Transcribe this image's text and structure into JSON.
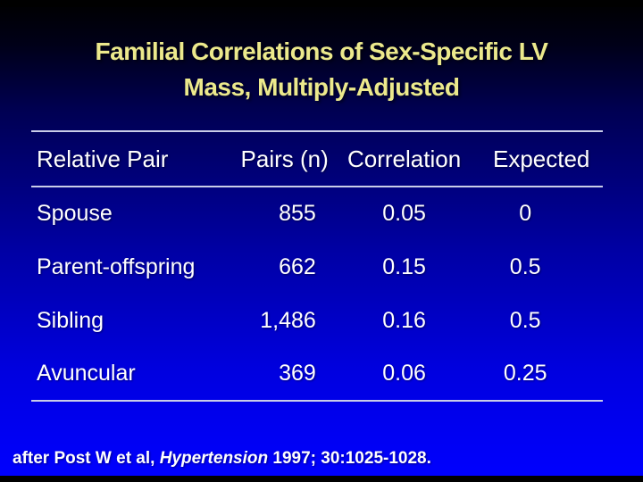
{
  "slide": {
    "title_line1": "Familial Correlations of Sex-Specific LV",
    "title_line2": "Mass, Multiply-Adjusted",
    "colors": {
      "title_text": "#ece98c",
      "table_text": "#ffffff",
      "rule_lines": "#c9cde8",
      "background_top": "#000003",
      "background_bottom": "#0000fe",
      "letterbox": "#000000"
    }
  },
  "table": {
    "columns": [
      "Relative Pair",
      "Pairs (n)",
      "Correlation",
      "Expected"
    ],
    "rows": [
      {
        "relative_pair": "Spouse",
        "pairs_n": "855",
        "correlation": "0.05",
        "expected": "0"
      },
      {
        "relative_pair": "Parent-offspring",
        "pairs_n": "662",
        "correlation": "0.15",
        "expected": "0.5"
      },
      {
        "relative_pair": "Sibling",
        "pairs_n": "1,486",
        "correlation": "0.16",
        "expected": "0.5"
      },
      {
        "relative_pair": "Avuncular",
        "pairs_n": "369",
        "correlation": "0.06",
        "expected": "0.25"
      }
    ]
  },
  "footer": {
    "prefix": "after Post W et al, ",
    "journal_italic": "Hypertension",
    "suffix": " 1997; 30:1025-1028."
  }
}
